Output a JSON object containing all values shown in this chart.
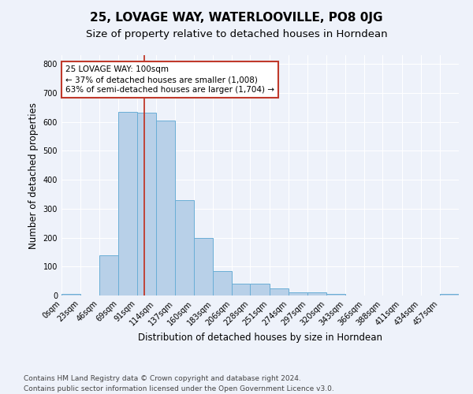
{
  "title": "25, LOVAGE WAY, WATERLOOVILLE, PO8 0JG",
  "subtitle": "Size of property relative to detached houses in Horndean",
  "xlabel": "Distribution of detached houses by size in Horndean",
  "ylabel": "Number of detached properties",
  "bin_edges": [
    0,
    23,
    46,
    69,
    91,
    114,
    137,
    160,
    183,
    206,
    228,
    251,
    274,
    297,
    320,
    343,
    366,
    388,
    411,
    434,
    457,
    480
  ],
  "bar_heights": [
    5,
    0,
    140,
    635,
    630,
    605,
    330,
    200,
    85,
    40,
    40,
    25,
    10,
    12,
    5,
    0,
    0,
    0,
    0,
    0,
    5
  ],
  "bar_color": "#b8d0e8",
  "bar_edgecolor": "#6aaed6",
  "property_line_x": 100,
  "property_line_color": "#c0392b",
  "annotation_text": "25 LOVAGE WAY: 100sqm\n← 37% of detached houses are smaller (1,008)\n63% of semi-detached houses are larger (1,704) →",
  "annotation_box_edgecolor": "#c0392b",
  "annotation_box_facecolor": "#ffffff",
  "ylim": [
    0,
    830
  ],
  "yticks": [
    0,
    100,
    200,
    300,
    400,
    500,
    600,
    700,
    800
  ],
  "x_tick_labels": [
    "0sqm",
    "23sqm",
    "46sqm",
    "69sqm",
    "91sqm",
    "114sqm",
    "137sqm",
    "160sqm",
    "183sqm",
    "206sqm",
    "228sqm",
    "251sqm",
    "274sqm",
    "297sqm",
    "320sqm",
    "343sqm",
    "366sqm",
    "388sqm",
    "411sqm",
    "434sqm",
    "457sqm"
  ],
  "background_color": "#eef2fa",
  "footer_text": "Contains HM Land Registry data © Crown copyright and database right 2024.\nContains public sector information licensed under the Open Government Licence v3.0.",
  "title_fontsize": 11,
  "subtitle_fontsize": 9.5,
  "axis_label_fontsize": 8.5,
  "tick_fontsize": 7,
  "footer_fontsize": 6.5,
  "annotation_fontsize": 7.5
}
